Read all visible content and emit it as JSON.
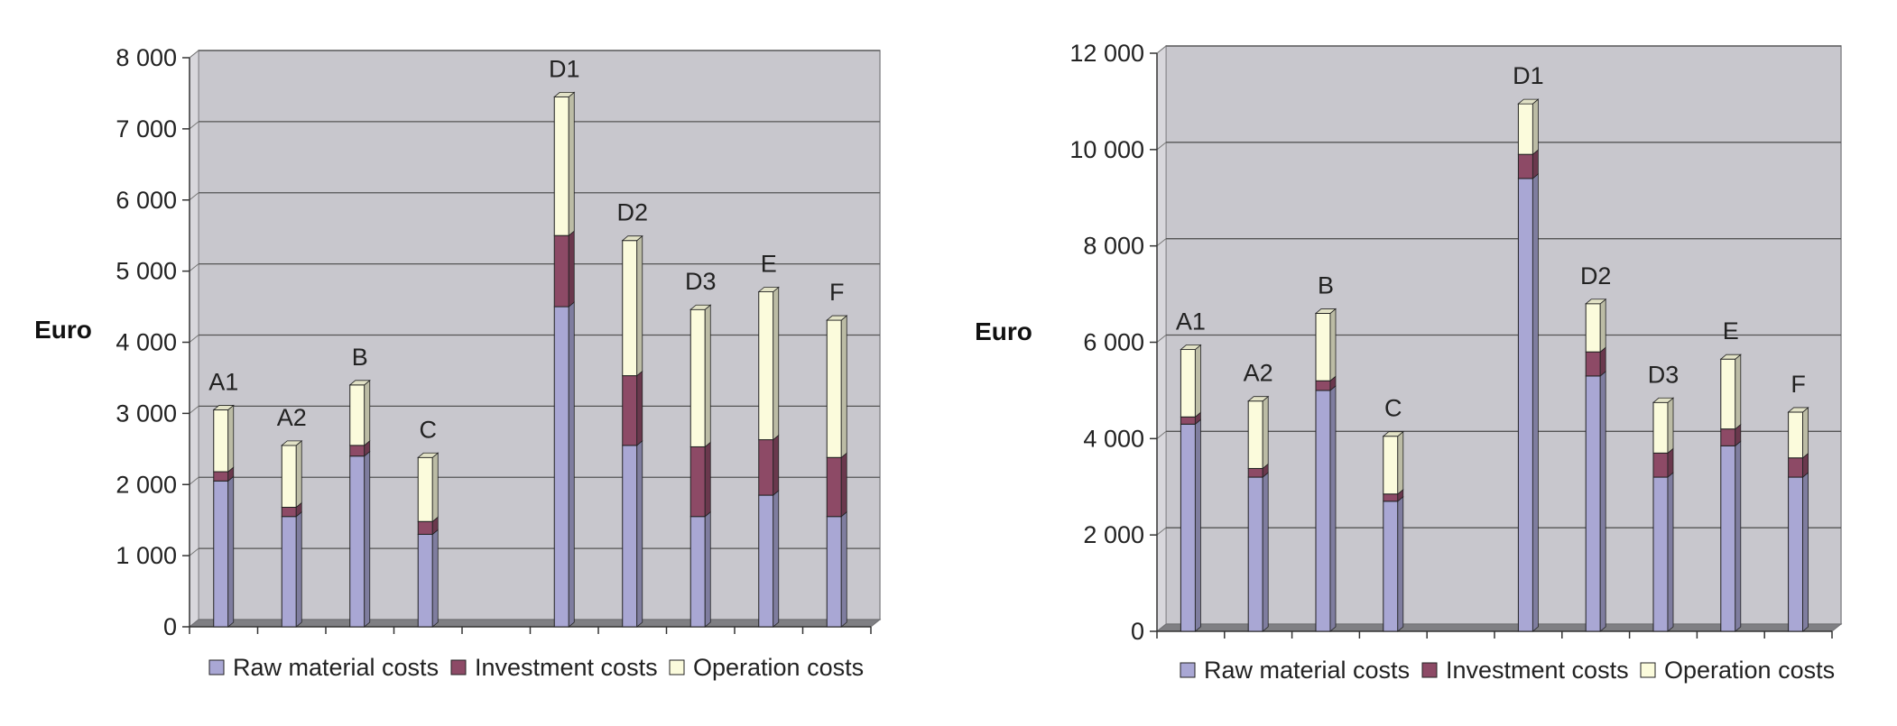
{
  "colors": {
    "raw": "#a9a7d4",
    "investment": "#8d4a66",
    "operation": "#fbfbdc",
    "plot_bg": "#c8c7cd",
    "floor": "#7f7f83",
    "wall_side": "#d8d7dc"
  },
  "chart_data": [
    {
      "type": "bar",
      "stacked": true,
      "ylabel": "Euro",
      "ylim": [
        0,
        8000
      ],
      "yticks": [
        0,
        1000,
        2000,
        3000,
        4000,
        5000,
        6000,
        7000,
        8000
      ],
      "ytick_labels": [
        "0",
        "1 000",
        "2 000",
        "3 000",
        "4 000",
        "5 000",
        "6 000",
        "7 000",
        "8 000"
      ],
      "categories": [
        "A1",
        "A2",
        "B",
        "C",
        "D1",
        "D2",
        "D3",
        "E",
        "F"
      ],
      "category_slots": [
        0,
        1,
        2,
        3,
        5,
        6,
        7,
        8,
        9
      ],
      "slot_count": 10,
      "grid": true,
      "legend": "bottom",
      "series": [
        {
          "name": "Raw material costs",
          "color_key": "raw",
          "values": [
            2050,
            1550,
            2400,
            1300,
            4500,
            2550,
            1550,
            1850,
            1550
          ]
        },
        {
          "name": "Investment costs",
          "color_key": "investment",
          "values": [
            130,
            130,
            150,
            180,
            1000,
            980,
            980,
            780,
            830
          ]
        },
        {
          "name": "Operation costs",
          "color_key": "operation",
          "values": [
            870,
            870,
            850,
            900,
            1950,
            1900,
            1930,
            2080,
            1930
          ]
        }
      ]
    },
    {
      "type": "bar",
      "stacked": true,
      "ylabel": "Euro",
      "ylim": [
        0,
        12000
      ],
      "yticks": [
        0,
        2000,
        4000,
        6000,
        8000,
        10000,
        12000
      ],
      "ytick_labels": [
        "0",
        "2 000",
        "4 000",
        "6 000",
        "8 000",
        "10 000",
        "12 000"
      ],
      "categories": [
        "A1",
        "A2",
        "B",
        "C",
        "D1",
        "D2",
        "D3",
        "E",
        "F"
      ],
      "category_slots": [
        0,
        1,
        2,
        3,
        5,
        6,
        7,
        8,
        9
      ],
      "slot_count": 10,
      "grid": true,
      "legend": "bottom",
      "series": [
        {
          "name": "Raw material costs",
          "color_key": "raw",
          "values": [
            4300,
            3200,
            5000,
            2700,
            9400,
            5300,
            3200,
            3850,
            3200
          ]
        },
        {
          "name": "Investment costs",
          "color_key": "investment",
          "values": [
            150,
            180,
            200,
            150,
            500,
            500,
            500,
            350,
            400
          ]
        },
        {
          "name": "Operation costs",
          "color_key": "operation",
          "values": [
            1400,
            1400,
            1400,
            1200,
            1050,
            1000,
            1050,
            1450,
            950
          ]
        }
      ]
    }
  ]
}
